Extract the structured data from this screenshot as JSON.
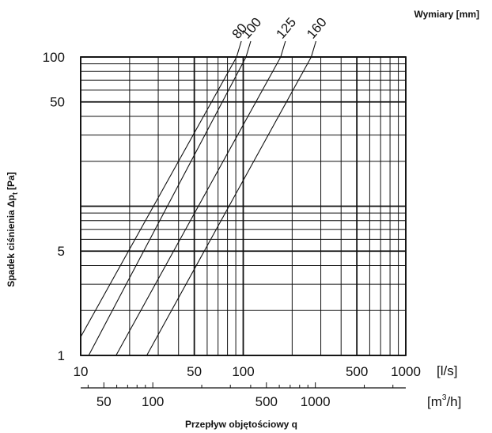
{
  "chart_data": {
    "type": "line",
    "title": "",
    "legend_title": "Wymiary [mm]",
    "xlabel": "Przepływ objętościowy q",
    "ylabel_main": "Spadek ciśnienia Δp",
    "ylabel_sub": "t",
    "ylabel_unit": "[Pa]",
    "x_scale": "log",
    "y_scale": "log",
    "xlim": [
      10,
      1000
    ],
    "ylim": [
      1,
      100
    ],
    "x_unit_primary": "[l/s]",
    "x_unit_secondary_base": "[m",
    "x_unit_secondary_sup": "3",
    "x_unit_secondary_tail": "/h]",
    "x_ticks": [
      {
        "value": 10,
        "label": "10"
      },
      {
        "value": 50,
        "label": "50"
      },
      {
        "value": 100,
        "label": "100"
      },
      {
        "value": 500,
        "label": "500"
      },
      {
        "value": 1000,
        "label": "1000"
      }
    ],
    "x2_ticks_m3h": [
      {
        "value": 50,
        "label": "50"
      },
      {
        "value": 100,
        "label": "100"
      },
      {
        "value": 500,
        "label": "500"
      },
      {
        "value": 1000,
        "label": "1000"
      }
    ],
    "y_ticks": [
      {
        "value": 1,
        "label": "1"
      },
      {
        "value": 5,
        "label": "5"
      },
      {
        "value": 50,
        "label": "50"
      },
      {
        "value": 100,
        "label": "100"
      }
    ],
    "grid": true,
    "series": [
      {
        "name": "80",
        "x": [
          10,
          91
        ],
        "y": [
          1.33,
          100
        ]
      },
      {
        "name": "100",
        "x": [
          11.2,
          104
        ],
        "y": [
          1,
          100
        ]
      },
      {
        "name": "125",
        "x": [
          16.5,
          170
        ],
        "y": [
          1,
          100
        ]
      },
      {
        "name": "160",
        "x": [
          25.5,
          262
        ],
        "y": [
          1,
          100
        ]
      }
    ]
  }
}
